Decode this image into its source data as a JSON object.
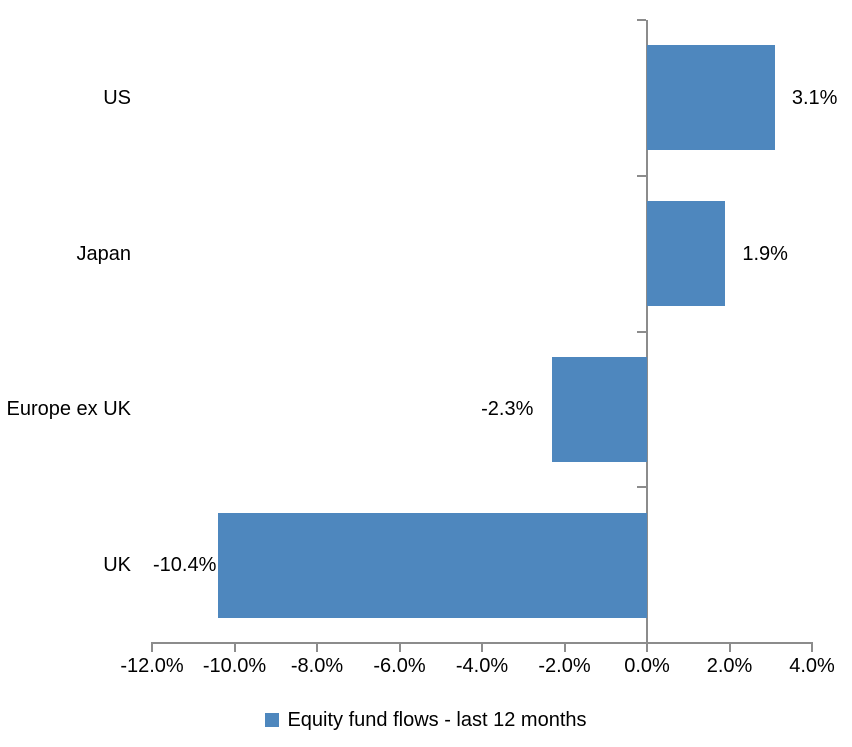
{
  "chart_data": {
    "type": "bar",
    "orientation": "horizontal",
    "title": "",
    "categories": [
      "US",
      "Japan",
      "Europe ex UK",
      "UK"
    ],
    "series": [
      {
        "name": "Equity fund flows - last 12 months",
        "values": [
          3.1,
          1.9,
          -2.3,
          -10.4
        ],
        "data_labels": [
          "3.1%",
          "1.9%",
          "-2.3%",
          "-10.4%"
        ]
      }
    ],
    "x_axis": {
      "min": -12.0,
      "max": 4.0,
      "step": 2.0,
      "tick_labels": [
        "-12.0%",
        "-10.0%",
        "-8.0%",
        "-6.0%",
        "-4.0%",
        "-2.0%",
        "0.0%",
        "2.0%",
        "4.0%"
      ]
    },
    "grid": false,
    "legend": {
      "position": "bottom",
      "marker": "square",
      "label": "Equity fund flows - last 12 months"
    },
    "colors": {
      "bar": "#4E87BE",
      "axis": "#8C8C8C",
      "text": "#000000",
      "background": "#FFFFFF"
    }
  }
}
